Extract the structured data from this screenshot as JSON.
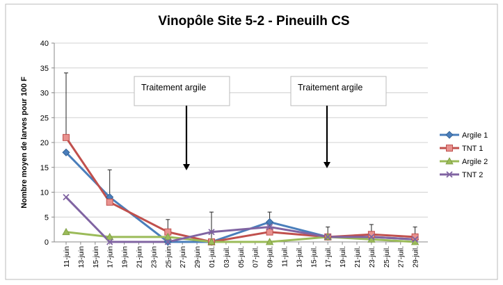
{
  "chart_data": {
    "type": "line",
    "title": "Vinopôle Site 5-2 - Pineuilh CS",
    "y_label": "Nombre moyen de larves pour 100 F",
    "categories": [
      "11-juin",
      "13-juin",
      "15-juin",
      "17-juin",
      "19-juin",
      "21-juin",
      "23-juin",
      "25-juin",
      "27-juin",
      "29-juin",
      "01-juil.",
      "03-juil.",
      "05-juil.",
      "07-juil.",
      "09-juil.",
      "11-juil.",
      "13-juil.",
      "15-juil.",
      "17-juil.",
      "19-juil.",
      "21-juil.",
      "23-juil.",
      "25-juil.",
      "27-juil.",
      "29-juil."
    ],
    "x": [
      "11-juin",
      "17-juin",
      "25-juin",
      "01-juil.",
      "09-juil.",
      "17-juil.",
      "23-juil.",
      "29-juil."
    ],
    "series": [
      {
        "name": "Argile 1",
        "color": "#4a7ebb",
        "marker": "diamond",
        "values": [
          18,
          9,
          0,
          0,
          4,
          1,
          1,
          0.5
        ]
      },
      {
        "name": "TNT 1",
        "color": "#c0504d",
        "marker": "square",
        "values": [
          21,
          8,
          2,
          0,
          2,
          1,
          1.5,
          1
        ],
        "errors": [
          13,
          6.5,
          2.5,
          6,
          4,
          2,
          2,
          2
        ]
      },
      {
        "name": "Argile 2",
        "color": "#9bbb59",
        "marker": "triangle",
        "values": [
          2,
          1,
          1,
          0,
          0,
          1,
          0.5,
          0
        ]
      },
      {
        "name": "TNT 2",
        "color": "#8064a2",
        "marker": "x",
        "values": [
          9,
          0,
          0,
          2,
          3,
          1,
          1,
          0.5
        ]
      }
    ],
    "annotations": [
      "Traitement argile",
      "Traitement argile"
    ],
    "ylim": [
      0,
      40
    ],
    "yticks": [
      0,
      5,
      10,
      15,
      20,
      25,
      30,
      35,
      40
    ],
    "grid": true,
    "legend": "right"
  }
}
